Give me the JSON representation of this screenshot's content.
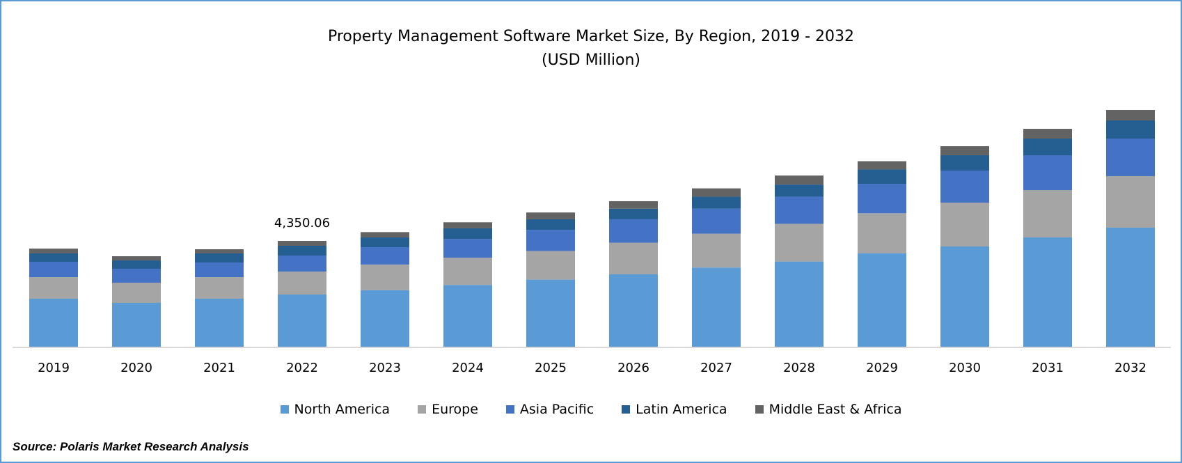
{
  "chart_data": {
    "type": "bar",
    "stacked": true,
    "title": "Property Management Software Market Size, By Region, 2019 - 2032",
    "subtitle": "(USD Million)",
    "xlabel": "",
    "ylabel": "",
    "grid": false,
    "legend_position": "bottom",
    "categories": [
      "2019",
      "2020",
      "2021",
      "2022",
      "2023",
      "2024",
      "2025",
      "2026",
      "2027",
      "2028",
      "2029",
      "2030",
      "2031",
      "2032"
    ],
    "series": [
      {
        "name": "North America",
        "color": "#5B9BD5",
        "values": [
          1975,
          1803,
          1975,
          2147,
          2325,
          2542,
          2759,
          2976,
          3255,
          3503,
          3844,
          4121,
          4493,
          4894
        ]
      },
      {
        "name": "Europe",
        "color": "#A5A5A5",
        "values": [
          887,
          830,
          887,
          944,
          1054,
          1116,
          1178,
          1302,
          1395,
          1550,
          1643,
          1803,
          1946,
          2118
        ]
      },
      {
        "name": "Asia Pacific",
        "color": "#4472C4",
        "values": [
          630,
          572,
          601,
          658,
          713,
          775,
          868,
          961,
          1023,
          1116,
          1209,
          1317,
          1431,
          1545
        ]
      },
      {
        "name": "Latin America",
        "color": "#255E91",
        "values": [
          343,
          343,
          372,
          401,
          403,
          434,
          434,
          434,
          496,
          496,
          589,
          630,
          687,
          744
        ]
      },
      {
        "name": "Middle East & Africa",
        "color": "#636363",
        "values": [
          200,
          172,
          172,
          200,
          217,
          248,
          279,
          310,
          341,
          372,
          341,
          372,
          401,
          429
        ]
      }
    ],
    "annotations": [
      {
        "category": "2022",
        "text": "4,350.06"
      }
    ]
  },
  "source": "Source: Polaris Market Research Analysis"
}
